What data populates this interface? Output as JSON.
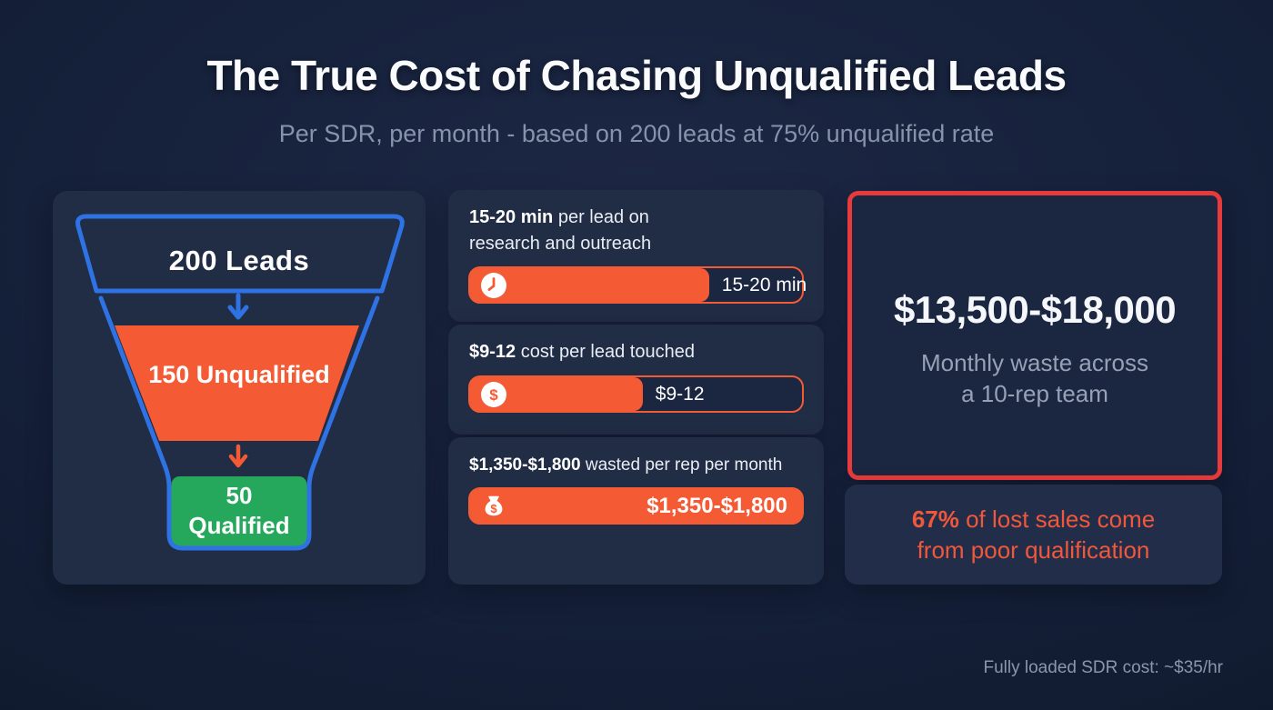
{
  "page": {
    "title": "The True Cost of Chasing Unqualified Leads",
    "subtitle": "Per SDR, per month - based on 200 leads at 75% unqualified rate",
    "footnote": "Fully loaded SDR cost: ~$35/hr"
  },
  "funnel": {
    "stage1_label": "200 Leads",
    "stage2_label": "150 Unqualified",
    "stage3_value": "50",
    "stage3_word": "Qualified"
  },
  "stats": [
    {
      "strong": "15-20 min",
      "rest": " per lead on",
      "rest_line2": "research and outreach",
      "bar_label": "15-20 min",
      "fill_pct": 72,
      "icon": "clock-icon"
    },
    {
      "strong": "$9-12",
      "rest": " cost per lead touched",
      "rest_line2": "",
      "bar_label": "$9-12",
      "fill_pct": 52,
      "icon": "dollar-coin-icon"
    },
    {
      "strong": "$1,350-$1,800",
      "rest": " wasted per rep per month",
      "rest_line2": "",
      "bar_label": "$1,350-$1,800",
      "fill_pct": 100,
      "icon": "money-bag-icon"
    }
  ],
  "summary": {
    "amount": "$13,500-$18,000",
    "caption_line1": "Monthly waste across",
    "caption_line2": "a 10-rep team"
  },
  "callout": {
    "strong": "67%",
    "rest_line1": " of lost sales come",
    "rest_line2": "from poor qualification"
  },
  "colors": {
    "accent_orange": "#f45a33",
    "accent_blue": "#2e72e4",
    "accent_green": "#25a85c",
    "alert_red": "#e63a3c",
    "panel_navy": "#212c45",
    "background_navy": "#141d33"
  },
  "chart_data": {
    "type": "funnel",
    "title": "The True Cost of Chasing Unqualified Leads",
    "subtitle": "Per SDR, per month - based on 200 leads at 75% unqualified rate",
    "funnel_stages": [
      {
        "label": "200 Leads",
        "value": 200
      },
      {
        "label": "150 Unqualified",
        "value": 150
      },
      {
        "label": "50 Qualified",
        "value": 50
      }
    ],
    "bars": [
      {
        "label": "per lead on research and outreach",
        "value": "15-20 min",
        "fill_pct": 72
      },
      {
        "label": "cost per lead touched",
        "value": "$9-12",
        "fill_pct": 52
      },
      {
        "label": "wasted per rep per month",
        "value": "$1,350-$1,800",
        "fill_pct": 100
      }
    ],
    "summary": {
      "value": "$13,500-$18,000",
      "label": "Monthly waste across a 10-rep team"
    },
    "callout": {
      "value": "67%",
      "label": "of lost sales come from poor qualification"
    },
    "footnote": "Fully loaded SDR cost: ~$35/hr"
  }
}
